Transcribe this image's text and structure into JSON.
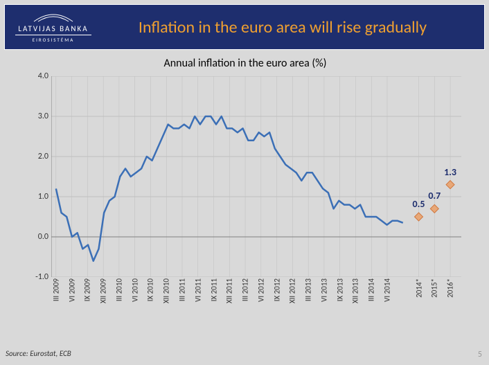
{
  "header": {
    "logo_top": "LATVIJAS BANKA",
    "logo_bottom": "EIROSISTĒMA",
    "title": "Inflation in the euro area will rise gradually"
  },
  "chart": {
    "type": "line",
    "title": "Annual inflation in the euro area (%)",
    "ylim": [
      -1.0,
      4.0
    ],
    "ytick_step": 1.0,
    "y_ticks": [
      "-1.0",
      "0.0",
      "1.0",
      "2.0",
      "3.0",
      "4.0"
    ],
    "x_labels": [
      "III 2009",
      "VI 2009",
      "IX 2009",
      "XII 2009",
      "III 2010",
      "VI 2010",
      "IX 2010",
      "XII 2010",
      "III 2011",
      "VI 2011",
      "IX 2011",
      "XII 2011",
      "III 2012",
      "VI 2012",
      "IX 2012",
      "XII 2012",
      "III 2013",
      "VI 2013",
      "IX 2013",
      "XII 2013",
      "III 2014",
      "VI 2014",
      "",
      "2014*",
      "2015*",
      "2016*"
    ],
    "line_values": [
      1.2,
      0.6,
      0.5,
      0.0,
      0.1,
      -0.3,
      -0.2,
      -0.6,
      -0.3,
      0.6,
      0.9,
      1.0,
      1.5,
      1.7,
      1.5,
      1.6,
      1.7,
      2.0,
      1.9,
      2.2,
      2.5,
      2.8,
      2.7,
      2.7,
      2.8,
      2.7,
      3.0,
      2.8,
      3.0,
      3.0,
      2.8,
      3.0,
      2.7,
      2.7,
      2.6,
      2.7,
      2.4,
      2.4,
      2.6,
      2.5,
      2.6,
      2.2,
      2.0,
      1.8,
      1.7,
      1.6,
      1.4,
      1.6,
      1.6,
      1.4,
      1.2,
      1.1,
      0.7,
      0.9,
      0.8,
      0.8,
      0.7,
      0.8,
      0.5,
      0.5,
      0.5,
      0.4,
      0.3,
      0.4,
      0.4,
      0.35
    ],
    "line_color": "#3b6fb6",
    "line_width": 2.5,
    "forecast_points": [
      {
        "x_index": 23,
        "y": 0.5,
        "label": "0.5"
      },
      {
        "x_index": 24,
        "y": 0.7,
        "label": "0.7"
      },
      {
        "x_index": 25,
        "y": 1.3,
        "label": "1.3"
      }
    ],
    "marker_fill": "#e8a878",
    "marker_stroke": "#d07840",
    "background_color": "#d9d9d9",
    "grid_color": "#bfbfbf",
    "axis_color": "#808080",
    "zero_line_dash": "2,2",
    "label_color": "#1e2e6e",
    "label_fontsize": 14
  },
  "footer": {
    "source": "Source: Eurostat, ECB",
    "page": "5"
  }
}
